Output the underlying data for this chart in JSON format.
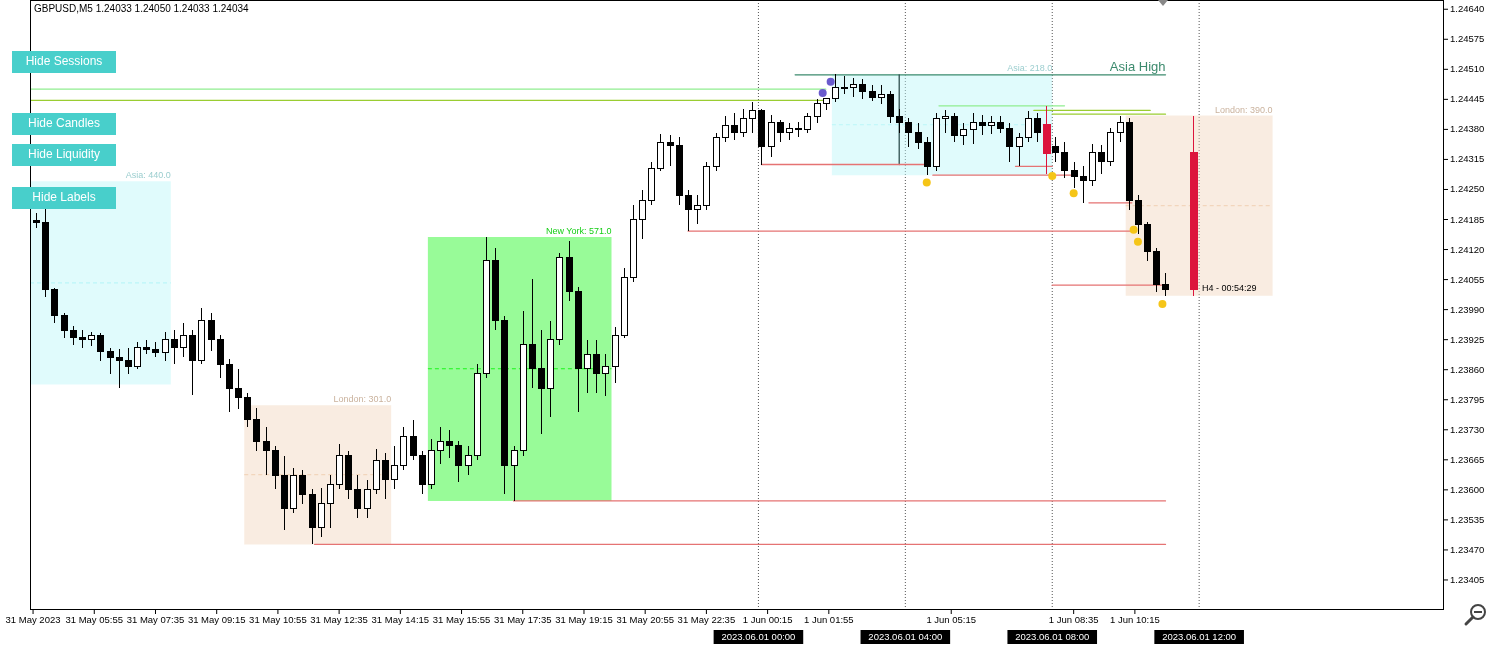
{
  "chart_data": {
    "type": "candlestick",
    "title": "GBPUSD,M5 1.24033 1.24050 1.24033 1.24034",
    "xlim": [
      "2023-05-31T04:10",
      "2023-06-01T18:40"
    ],
    "ylim": [
      1.2334,
      1.2466
    ],
    "xticks": [
      {
        "value": "2023-05-31T04:15",
        "label": "31 May 2023"
      },
      {
        "value": "2023-05-31T05:55",
        "label": "31 May 05:55"
      },
      {
        "value": "2023-05-31T07:35",
        "label": "31 May 07:35"
      },
      {
        "value": "2023-05-31T09:15",
        "label": "31 May 09:15"
      },
      {
        "value": "2023-05-31T10:55",
        "label": "31 May 10:55"
      },
      {
        "value": "2023-05-31T12:35",
        "label": "31 May 12:35"
      },
      {
        "value": "2023-05-31T14:15",
        "label": "31 May 14:15"
      },
      {
        "value": "2023-05-31T15:55",
        "label": "31 May 15:55"
      },
      {
        "value": "2023-05-31T17:35",
        "label": "31 May 17:35"
      },
      {
        "value": "2023-05-31T19:15",
        "label": "31 May 19:15"
      },
      {
        "value": "2023-05-31T20:55",
        "label": "31 May 20:55"
      },
      {
        "value": "2023-05-31T22:35",
        "label": "31 May 22:35"
      },
      {
        "value": "2023-06-01T00:15",
        "label": "1 Jun 00:15"
      },
      {
        "value": "2023-06-01T01:55",
        "label": "1 Jun 01:55"
      },
      {
        "value": "2023-06-01T05:15",
        "label": "1 Jun 05:15"
      },
      {
        "value": "2023-06-01T08:35",
        "label": "1 Jun 08:35"
      },
      {
        "value": "2023-06-01T10:15",
        "label": "1 Jun 10:15"
      }
    ],
    "yticks": [
      {
        "value": 1.2464,
        "label": "1.24640"
      },
      1.24575,
      {
        "value": 1.2451,
        "label": "1.24510"
      },
      1.24445,
      {
        "value": 1.2438,
        "label": "1.24380"
      },
      1.24315,
      {
        "value": 1.2425,
        "label": "1.24250"
      },
      1.24185,
      {
        "value": 1.2412,
        "label": "1.24120"
      },
      1.24055,
      {
        "value": 1.2399,
        "label": "1.23990"
      },
      1.23925,
      {
        "value": 1.2386,
        "label": "1.23860"
      },
      1.23795,
      {
        "value": 1.2373,
        "label": "1.23730"
      },
      1.23665,
      {
        "value": 1.236,
        "label": "1.23600"
      },
      1.23535,
      {
        "value": 1.2347,
        "label": "1.23470"
      },
      1.23405
    ],
    "series": [
      {
        "color": "#000000",
        "x": [
          "2023-05-31T04:20",
          "2023-05-31T04:35",
          "2023-05-31T04:50",
          "2023-05-31T05:05",
          "2023-05-31T05:20",
          "2023-05-31T05:35",
          "2023-05-31T05:50",
          "2023-05-31T06:05",
          "2023-05-31T06:20",
          "2023-05-31T06:35",
          "2023-05-31T06:50",
          "2023-05-31T07:05",
          "2023-05-31T07:20",
          "2023-05-31T07:35",
          "2023-05-31T07:50",
          "2023-05-31T08:05",
          "2023-05-31T08:20",
          "2023-05-31T08:35",
          "2023-05-31T08:50",
          "2023-05-31T09:05",
          "2023-05-31T09:20",
          "2023-05-31T09:35",
          "2023-05-31T09:50",
          "2023-05-31T10:05",
          "2023-05-31T10:20",
          "2023-05-31T10:35",
          "2023-05-31T10:50",
          "2023-05-31T11:05",
          "2023-05-31T11:20",
          "2023-05-31T11:35",
          "2023-05-31T11:50",
          "2023-05-31T12:05",
          "2023-05-31T12:20",
          "2023-05-31T12:35",
          "2023-05-31T12:50",
          "2023-05-31T13:05",
          "2023-05-31T13:20",
          "2023-05-31T13:35",
          "2023-05-31T13:50",
          "2023-05-31T14:05",
          "2023-05-31T14:20",
          "2023-05-31T14:35",
          "2023-05-31T14:50",
          "2023-05-31T15:05",
          "2023-05-31T15:20",
          "2023-05-31T15:35",
          "2023-05-31T15:50",
          "2023-05-31T16:05",
          "2023-05-31T16:20",
          "2023-05-31T16:35",
          "2023-05-31T16:50",
          "2023-05-31T17:05",
          "2023-05-31T17:20",
          "2023-05-31T17:35",
          "2023-05-31T17:50",
          "2023-05-31T18:05",
          "2023-05-31T18:20",
          "2023-05-31T18:35",
          "2023-05-31T18:50",
          "2023-05-31T19:05",
          "2023-05-31T19:20",
          "2023-05-31T19:35",
          "2023-05-31T19:50",
          "2023-05-31T20:05",
          "2023-05-31T20:20",
          "2023-05-31T20:35",
          "2023-05-31T20:50",
          "2023-05-31T21:05",
          "2023-05-31T21:20",
          "2023-05-31T21:35",
          "2023-05-31T21:50",
          "2023-05-31T22:05",
          "2023-05-31T22:20",
          "2023-05-31T22:35",
          "2023-05-31T22:50",
          "2023-05-31T23:05",
          "2023-05-31T23:20",
          "2023-05-31T23:35",
          "2023-05-31T23:50",
          "2023-06-01T00:05",
          "2023-06-01T00:20",
          "2023-06-01T00:35",
          "2023-06-01T00:50",
          "2023-06-01T01:05",
          "2023-06-01T01:20",
          "2023-06-01T01:35",
          "2023-06-01T01:50",
          "2023-06-01T02:05",
          "2023-06-01T02:20",
          "2023-06-01T02:35",
          "2023-06-01T02:50",
          "2023-06-01T03:05",
          "2023-06-01T03:20",
          "2023-06-01T03:35",
          "2023-06-01T03:50",
          "2023-06-01T04:05",
          "2023-06-01T04:20",
          "2023-06-01T04:35",
          "2023-06-01T04:50",
          "2023-06-01T05:05",
          "2023-06-01T05:20",
          "2023-06-01T05:35",
          "2023-06-01T05:50",
          "2023-06-01T06:05",
          "2023-06-01T06:20",
          "2023-06-01T06:35",
          "2023-06-01T06:50",
          "2023-06-01T07:05",
          "2023-06-01T07:20",
          "2023-06-01T07:35",
          "2023-06-01T08:05",
          "2023-06-01T08:20",
          "2023-06-01T08:35",
          "2023-06-01T08:50",
          "2023-06-01T09:05",
          "2023-06-01T09:20",
          "2023-06-01T09:35",
          "2023-06-01T09:50",
          "2023-06-01T10:05",
          "2023-06-01T10:20",
          "2023-06-01T10:35",
          "2023-06-01T10:50",
          "2023-06-01T11:05"
        ],
        "ohlc": [
          [
            1.24183,
            1.242,
            1.24166,
            1.24179
          ],
          [
            1.24179,
            1.24212,
            1.24018,
            1.24033
          ],
          [
            1.24033,
            1.24037,
            1.23962,
            1.23977
          ],
          [
            1.23977,
            1.23983,
            1.23929,
            1.23945
          ],
          [
            1.23945,
            1.23954,
            1.23914,
            1.23929
          ],
          [
            1.23929,
            1.23945,
            1.23908,
            1.23925
          ],
          [
            1.23925,
            1.23941,
            1.23912,
            1.23933
          ],
          [
            1.23933,
            1.23939,
            1.23879,
            1.239
          ],
          [
            1.239,
            1.23908,
            1.23851,
            1.23887
          ],
          [
            1.23887,
            1.23904,
            1.2382,
            1.23879
          ],
          [
            1.23879,
            1.23908,
            1.23851,
            1.23866
          ],
          [
            1.23866,
            1.2392,
            1.23862,
            1.23908
          ],
          [
            1.23908,
            1.23925,
            1.23893,
            1.23904
          ],
          [
            1.23904,
            1.2392,
            1.23887,
            1.23897
          ],
          [
            1.23897,
            1.23941,
            1.23879,
            1.23925
          ],
          [
            1.23925,
            1.23945,
            1.23872,
            1.23908
          ],
          [
            1.23908,
            1.2396,
            1.23887,
            1.23935
          ],
          [
            1.23935,
            1.23945,
            1.23806,
            1.23879
          ],
          [
            1.23879,
            1.23993,
            1.23872,
            1.23966
          ],
          [
            1.23966,
            1.23983,
            1.239,
            1.23925
          ],
          [
            1.23925,
            1.23935,
            1.23841,
            1.23872
          ],
          [
            1.23872,
            1.23883,
            1.23768,
            1.2382
          ],
          [
            1.2382,
            1.23862,
            1.23774,
            1.23799
          ],
          [
            1.23799,
            1.2381,
            1.23737,
            1.23753
          ],
          [
            1.23753,
            1.23778,
            1.23685,
            1.23705
          ],
          [
            1.23705,
            1.23737,
            1.23632,
            1.23685
          ],
          [
            1.23685,
            1.23695,
            1.23601,
            1.23632
          ],
          [
            1.23632,
            1.23674,
            1.23513,
            1.23559
          ],
          [
            1.23559,
            1.23647,
            1.23549,
            1.23632
          ],
          [
            1.23632,
            1.23643,
            1.2357,
            1.23591
          ],
          [
            1.23591,
            1.23601,
            1.23482,
            1.23518
          ],
          [
            1.23518,
            1.23605,
            1.23497,
            1.2357
          ],
          [
            1.2357,
            1.23632,
            1.23518,
            1.23612
          ],
          [
            1.23612,
            1.23699,
            1.23601,
            1.23674
          ],
          [
            1.23674,
            1.23685,
            1.2358,
            1.23601
          ],
          [
            1.23601,
            1.23632,
            1.23539,
            1.23559
          ],
          [
            1.23559,
            1.23622,
            1.23539,
            1.23601
          ],
          [
            1.23601,
            1.23689,
            1.23591,
            1.23664
          ],
          [
            1.23664,
            1.2368,
            1.2358,
            1.23622
          ],
          [
            1.23622,
            1.23695,
            1.23601,
            1.23653
          ],
          [
            1.23653,
            1.23737,
            1.23643,
            1.23716
          ],
          [
            1.23716,
            1.23751,
            1.23664,
            1.23674
          ],
          [
            1.23674,
            1.23685,
            1.23591,
            1.23612
          ],
          [
            1.23612,
            1.2371,
            1.23601,
            1.23685
          ],
          [
            1.23685,
            1.23737,
            1.23657,
            1.23705
          ],
          [
            1.23705,
            1.2373,
            1.2367,
            1.23695
          ],
          [
            1.23695,
            1.23705,
            1.23618,
            1.23653
          ],
          [
            1.23653,
            1.23695,
            1.23632,
            1.23674
          ],
          [
            1.23674,
            1.23872,
            1.23664,
            1.23851
          ],
          [
            1.23851,
            1.24147,
            1.23841,
            1.24096
          ],
          [
            1.24096,
            1.24123,
            1.23945,
            1.23966
          ],
          [
            1.23966,
            1.23977,
            1.23591,
            1.23653
          ],
          [
            1.23653,
            1.23695,
            1.23576,
            1.23685
          ],
          [
            1.23685,
            1.23987,
            1.23674,
            1.23914
          ],
          [
            1.23914,
            1.24056,
            1.2382,
            1.23862
          ],
          [
            1.23862,
            1.23945,
            1.2372,
            1.2382
          ],
          [
            1.2382,
            1.23966,
            1.23758,
            1.23925
          ],
          [
            1.23925,
            1.24112,
            1.23914,
            1.24102
          ],
          [
            1.24102,
            1.24139,
            1.24008,
            1.24029
          ],
          [
            1.24029,
            1.24039,
            1.23768,
            1.23862
          ],
          [
            1.23862,
            1.23925,
            1.2381,
            1.23893
          ],
          [
            1.23893,
            1.23925,
            1.2381,
            1.23851
          ],
          [
            1.23851,
            1.23893,
            1.23803,
            1.23866
          ],
          [
            1.23866,
            1.23952,
            1.23831,
            1.23935
          ],
          [
            1.23935,
            1.24081,
            1.23929,
            1.2406
          ],
          [
            1.2406,
            1.24216,
            1.2405,
            1.24185
          ],
          [
            1.24185,
            1.24248,
            1.24143,
            1.24227
          ],
          [
            1.24227,
            1.2431,
            1.24216,
            1.24296
          ],
          [
            1.24296,
            1.24369,
            1.24289,
            1.24352
          ],
          [
            1.24352,
            1.24367,
            1.243,
            1.24346
          ],
          [
            1.24346,
            1.24363,
            1.24216,
            1.24237
          ],
          [
            1.24237,
            1.24248,
            1.2416,
            1.24206
          ],
          [
            1.24206,
            1.24237,
            1.24175,
            1.24216
          ],
          [
            1.24216,
            1.2431,
            1.24206,
            1.243
          ],
          [
            1.243,
            1.24373,
            1.24289,
            1.24363
          ],
          [
            1.24363,
            1.24408,
            1.24352,
            1.24388
          ],
          [
            1.24388,
            1.24415,
            1.24356,
            1.24373
          ],
          [
            1.24373,
            1.24425,
            1.24363,
            1.24404
          ],
          [
            1.24404,
            1.2444,
            1.24373,
            1.24421
          ],
          [
            1.24421,
            1.24425,
            1.24304,
            1.24342
          ],
          [
            1.24342,
            1.24411,
            1.24321,
            1.24394
          ],
          [
            1.24394,
            1.244,
            1.24352,
            1.24373
          ],
          [
            1.24373,
            1.24394,
            1.24358,
            1.24383
          ],
          [
            1.24383,
            1.24396,
            1.24363,
            1.24379
          ],
          [
            1.24379,
            1.24415,
            1.24373,
            1.24408
          ],
          [
            1.24408,
            1.24446,
            1.24394,
            1.24436
          ],
          [
            1.24436,
            1.24448,
            1.24421,
            1.24446
          ],
          [
            1.24446,
            1.24499,
            1.2444,
            1.24471
          ],
          [
            1.24471,
            1.24496,
            1.24456,
            1.24471
          ],
          [
            1.24471,
            1.24492,
            1.2445,
            1.24477
          ],
          [
            1.24477,
            1.24488,
            1.24446,
            1.24463
          ],
          [
            1.24463,
            1.24477,
            1.24442,
            1.2445
          ],
          [
            1.2445,
            1.24477,
            1.24436,
            1.24456
          ],
          [
            1.24456,
            1.24463,
            1.24394,
            1.24408
          ],
          [
            1.24408,
            1.24425,
            1.24373,
            1.24394
          ],
          [
            1.24394,
            1.24404,
            1.24342,
            1.24373
          ],
          [
            1.24373,
            1.24394,
            1.24337,
            1.24352
          ],
          [
            1.24352,
            1.24363,
            1.24281,
            1.243
          ],
          [
            1.243,
            1.24415,
            1.24289,
            1.24404
          ],
          [
            1.24404,
            1.24421,
            1.24373,
            1.24408
          ],
          [
            1.24408,
            1.24415,
            1.24352,
            1.24367
          ],
          [
            1.24367,
            1.24394,
            1.24346,
            1.24379
          ],
          [
            1.24379,
            1.24415,
            1.24348,
            1.24394
          ],
          [
            1.24394,
            1.24411,
            1.24367,
            1.24388
          ],
          [
            1.24388,
            1.24408,
            1.24369,
            1.24394
          ],
          [
            1.24394,
            1.24408,
            1.24373,
            1.24383
          ],
          [
            1.24383,
            1.24394,
            1.2431,
            1.24342
          ],
          [
            1.24342,
            1.24373,
            1.243,
            1.24363
          ],
          [
            1.24363,
            1.24419,
            1.24352,
            1.24404
          ],
          [
            1.24404,
            1.24415,
            1.24352,
            1.24373
          ],
          [
            1.24342,
            1.24363,
            1.2431,
            1.24331
          ],
          [
            1.24331,
            1.24352,
            1.24275,
            1.2429
          ],
          [
            1.2429,
            1.2431,
            1.24254,
            1.24279
          ],
          [
            1.24279,
            1.243,
            1.24221,
            1.24269
          ],
          [
            1.24269,
            1.24348,
            1.24258,
            1.24331
          ],
          [
            1.24331,
            1.24346,
            1.24283,
            1.2431
          ],
          [
            1.2431,
            1.24383,
            1.243,
            1.24373
          ],
          [
            1.24373,
            1.2441,
            1.24352,
            1.24394
          ],
          [
            1.24394,
            1.24404,
            1.24206,
            1.24227
          ],
          [
            1.24227,
            1.24237,
            1.24154,
            1.24175
          ],
          [
            1.24175,
            1.24179,
            1.24096,
            1.24116
          ],
          [
            1.24116,
            1.24123,
            1.24029,
            1.24045
          ],
          [
            1.24045,
            1.2407,
            1.2402,
            1.24034
          ]
        ]
      },
      {
        "type": "candlestick",
        "color": "#dc143c",
        "x": [
          "2023-06-01T07:50",
          "2023-06-01T11:50"
        ],
        "ohlc": [
          [
            1.2439,
            1.24431,
            1.24283,
            1.24327
          ],
          [
            1.2433,
            1.2441,
            1.2402,
            1.24034
          ]
        ]
      },
      {
        "type": "line",
        "color": "#baf6f8",
        "line_style": "dashed",
        "x": [
          "2023-05-31T04:10",
          "2023-05-31T08:00"
        ],
        "values": [
          1.24048,
          1.24048
        ],
        "lower": [
          1.23828,
          1.23828
        ],
        "upper": [
          1.24268,
          1.24268
        ]
      },
      {
        "type": "line",
        "color": "#f2d5bc",
        "line_style": "dashed",
        "x": [
          "2023-05-31T10:00",
          "2023-05-31T14:00"
        ],
        "values": [
          1.23633,
          1.23633
        ],
        "lower": [
          1.23482,
          1.23482
        ],
        "upper": [
          1.23783,
          1.23783
        ]
      },
      {
        "type": "line",
        "color": "#1af61a",
        "line_style": "dashed",
        "x": [
          "2023-05-31T15:00",
          "2023-05-31T20:00"
        ],
        "values": [
          1.23862,
          1.23862
        ],
        "lower": [
          1.23576,
          1.23576
        ],
        "upper": [
          1.24147,
          1.24147
        ]
      },
      {
        "type": "line",
        "color": "#baf6f8",
        "line_style": "dashed",
        "x": [
          "2023-06-01T02:00",
          "2023-06-01T08:00"
        ],
        "values": [
          1.2439,
          1.2439
        ],
        "lower": [
          1.24281,
          1.24281
        ],
        "upper": [
          1.24499,
          1.24499
        ]
      },
      {
        "type": "line",
        "color": "#f2d5bc",
        "line_style": "dashed",
        "x": [
          "2023-06-01T10:00",
          "2023-06-01T14:00"
        ],
        "values": [
          1.24215,
          1.24215
        ],
        "lower": [
          1.2402,
          1.2402
        ],
        "upper": [
          1.2441,
          1.2441
        ]
      },
      {
        "type": "line",
        "color": "#90ee90",
        "line_style": "solid",
        "x": [
          "2023-05-31T04:10",
          "2023-06-01T01:50"
        ],
        "values": [
          1.24467,
          1.24467
        ]
      },
      {
        "type": "line",
        "color": "#9acd32",
        "line_style": "solid",
        "x": [
          "2023-05-31T04:10",
          "2023-06-01T01:50"
        ],
        "values": [
          1.24443,
          1.24443
        ]
      },
      {
        "type": "line",
        "color": "#3d8b6e",
        "line_style": "solid",
        "x": [
          "2023-06-01T01:00",
          "2023-06-01T11:05"
        ],
        "values": [
          1.24498,
          1.24498
        ]
      },
      {
        "type": "line",
        "color": "#90ee90",
        "line_style": "solid",
        "x": [
          "2023-06-01T04:55",
          "2023-06-01T08:20"
        ],
        "values": [
          1.24431,
          1.24431
        ]
      },
      {
        "type": "line",
        "color": "#9acd32",
        "line_style": "solid",
        "x": [
          "2023-06-01T07:30",
          "2023-06-01T10:40"
        ],
        "values": [
          1.24421,
          1.24421
        ]
      },
      {
        "type": "line",
        "color": "#9acd32",
        "line_style": "solid",
        "x": [
          "2023-06-01T08:00",
          "2023-06-01T11:05"
        ],
        "values": [
          1.24413,
          1.24413
        ]
      },
      {
        "type": "line",
        "color": "#2f4f4f",
        "line_style": "solid",
        "x": [
          "2023-06-01T03:50",
          "2023-06-01T03:50"
        ],
        "values": [
          1.24498,
          1.24304
        ]
      },
      {
        "type": "line",
        "color": "#e57373",
        "line_style": "solid",
        "x": [
          "2023-06-01T00:05",
          "2023-06-01T04:35"
        ],
        "values": [
          1.24304,
          1.24304
        ]
      },
      {
        "type": "line",
        "color": "#e57373",
        "line_style": "solid",
        "x": [
          "2023-06-01T04:45",
          "2023-06-01T08:30"
        ],
        "values": [
          1.24281,
          1.24281
        ]
      },
      {
        "type": "line",
        "color": "#e57373",
        "line_style": "solid",
        "x": [
          "2023-06-01T07:00",
          "2023-06-01T08:00"
        ],
        "values": [
          1.243,
          1.243
        ]
      },
      {
        "type": "line",
        "color": "#e57373",
        "line_style": "solid",
        "x": [
          "2023-06-01T09:00",
          "2023-06-01T10:10"
        ],
        "values": [
          1.24221,
          1.24221
        ]
      },
      {
        "type": "line",
        "color": "#e57373",
        "line_style": "solid",
        "x": [
          "2023-05-31T22:05",
          "2023-06-01T10:10"
        ],
        "values": [
          1.2416,
          1.2416
        ]
      },
      {
        "type": "line",
        "color": "#e57373",
        "line_style": "solid",
        "x": [
          "2023-06-01T08:00",
          "2023-06-01T11:00"
        ],
        "values": [
          1.24043,
          1.24043
        ]
      },
      {
        "type": "line",
        "color": "#e57373",
        "line_style": "solid",
        "x": [
          "2023-05-31T17:20",
          "2023-06-01T11:05"
        ],
        "values": [
          1.23576,
          1.23576
        ]
      },
      {
        "type": "line",
        "color": "#e57373",
        "line_style": "solid",
        "x": [
          "2023-05-31T11:55",
          "2023-06-01T11:05"
        ],
        "values": [
          1.23482,
          1.23482
        ]
      },
      {
        "type": "scatter",
        "color": "#f5c518",
        "marker": "circle",
        "x": [
          "2023-06-01T04:35",
          "2023-06-01T08:00",
          "2023-06-01T08:35",
          "2023-06-01T10:13",
          "2023-06-01T10:20",
          "2023-06-01T11:00"
        ],
        "values": [
          1.24265,
          1.24279,
          1.24242,
          1.24163,
          1.24137,
          1.24002
        ]
      },
      {
        "type": "scatter",
        "color": "#6a5acd",
        "marker": "circle",
        "x": [
          "2023-06-01T01:45",
          "2023-06-01T01:58"
        ],
        "values": [
          1.24459,
          1.24483
        ]
      }
    ],
    "ref_lines": [
      {
        "axis": "x",
        "value": "2023-06-01T00:00",
        "label": "2023.06.01 00:00",
        "color": "#555555",
        "line_style": "dotted"
      },
      {
        "axis": "x",
        "value": "2023-06-01T04:00",
        "label": "2023.06.01 04:00",
        "color": "#555555",
        "line_style": "dotted"
      },
      {
        "axis": "x",
        "value": "2023-06-01T08:00",
        "label": "2023.06.01 08:00",
        "color": "#555555",
        "line_style": "dotted"
      },
      {
        "axis": "x",
        "value": "2023-06-01T12:00",
        "label": "2023.06.01 12:00",
        "color": "#555555",
        "line_style": "dotted"
      }
    ],
    "annotations": [
      "Hide Sessions",
      "Hide Candles",
      "Hide Liquidity",
      "Hide Labels",
      {
        "text": "Asia: 440.0",
        "x": "2023-05-31T08:00",
        "y": 1.24268
      },
      {
        "text": "London: 301.0",
        "x": "2023-05-31T14:00",
        "y": 1.23783
      },
      {
        "text": "New York: 571.0",
        "x": "2023-05-31T20:00",
        "y": 1.24147
      },
      {
        "text": "Asia: 218.0",
        "x": "2023-06-01T08:00",
        "y": 1.24499
      },
      {
        "text": "London: 390.0",
        "x": "2023-06-01T14:00",
        "y": 1.2441
      },
      {
        "text": "Asia High",
        "x": "2023-06-01T11:05",
        "y": 1.24498
      },
      {
        "text": "H4 - 00:54:29",
        "x": "2023-06-01T11:50",
        "y": 1.24034
      }
    ]
  }
}
